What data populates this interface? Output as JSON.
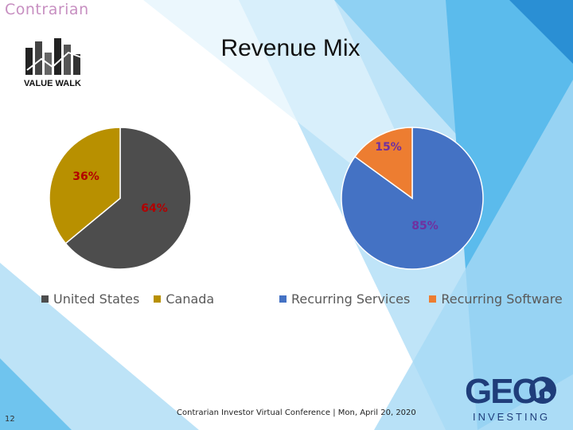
{
  "slide": {
    "brand": "Contrarian",
    "title": "Revenue Mix",
    "page_number": "12",
    "footer": "Contrarian Investor Virtual Conference | Mon, April 20, 2020",
    "value_walk_logo": "VALUE WALK",
    "geo_logo": {
      "top": "GEO",
      "bottom": "INVESTING"
    }
  },
  "chart_data": [
    {
      "type": "pie",
      "categories": [
        "United States",
        "Canada"
      ],
      "values": [
        64,
        36
      ],
      "labels": [
        "64%",
        "36%"
      ],
      "colors": [
        "#4d4d4d",
        "#b89000"
      ],
      "legend": "bottom"
    },
    {
      "type": "pie",
      "categories": [
        "Recurring Services",
        "Recurring Software"
      ],
      "values": [
        85,
        15
      ],
      "labels": [
        "85%",
        "15%"
      ],
      "colors": [
        "#4472c4",
        "#ed7d31"
      ],
      "legend": "bottom"
    }
  ],
  "label_colors": {
    "geo_chart": "#b30000",
    "revenue_chart": "#7030a0"
  }
}
